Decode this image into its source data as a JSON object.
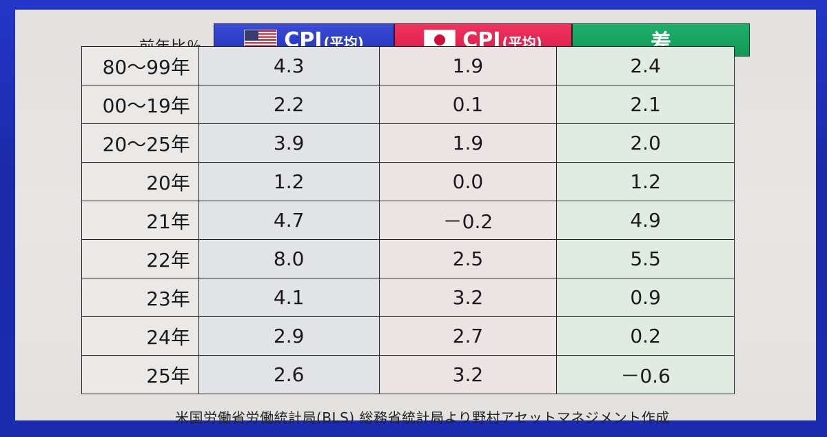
{
  "table": {
    "unit_label": "前年比％",
    "columns": [
      {
        "key": "us",
        "title": "CPI",
        "subtitle": "(平均)",
        "icon": "us-flag-icon",
        "color": "#2a3bc4"
      },
      {
        "key": "jp",
        "title": "CPI",
        "subtitle": "(平均)",
        "icon": "japan-flag-icon",
        "color": "#e0204f"
      },
      {
        "key": "diff",
        "title": "差",
        "subtitle": "",
        "icon": "",
        "color": "#15a55f"
      }
    ],
    "rows": [
      {
        "label": "80～99年",
        "us": "4.3",
        "jp": "1.9",
        "diff": "2.4"
      },
      {
        "label": "00～19年",
        "us": "2.2",
        "jp": "0.1",
        "diff": "2.1"
      },
      {
        "label": "20～25年",
        "us": "3.9",
        "jp": "1.9",
        "diff": "2.0"
      },
      {
        "label": "20年",
        "us": "1.2",
        "jp": "0.0",
        "diff": "1.2"
      },
      {
        "label": "21年",
        "us": "4.7",
        "jp": "－0.2",
        "diff": "4.9"
      },
      {
        "label": "22年",
        "us": "8.0",
        "jp": "2.5",
        "diff": "5.5"
      },
      {
        "label": "23年",
        "us": "4.1",
        "jp": "3.2",
        "diff": "0.9"
      },
      {
        "label": "24年",
        "us": "2.9",
        "jp": "2.7",
        "diff": "0.2"
      },
      {
        "label": "25年",
        "us": "2.6",
        "jp": "3.2",
        "diff": "－0.6"
      }
    ]
  },
  "source": "米国労働省労働統計局(BLS) 総務省統計局より野村アセットマネジメント作成"
}
